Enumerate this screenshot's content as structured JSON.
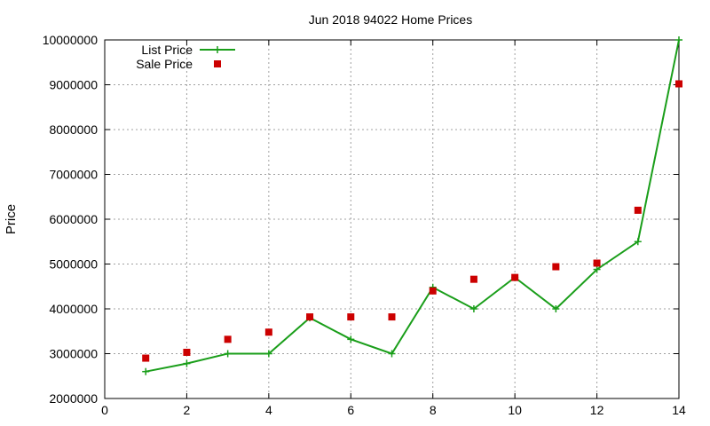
{
  "chart_data": {
    "type": "line",
    "title": "Jun 2018 94022 Home Prices",
    "xlabel": "",
    "ylabel": "Price",
    "xlim": [
      0,
      14
    ],
    "ylim": [
      2000000,
      10000000
    ],
    "x_ticks": [
      0,
      2,
      4,
      6,
      8,
      10,
      12,
      14
    ],
    "y_ticks": [
      2000000,
      3000000,
      4000000,
      5000000,
      6000000,
      7000000,
      8000000,
      9000000,
      10000000
    ],
    "grid": true,
    "legend_position": "top-left",
    "x": [
      1,
      2,
      3,
      4,
      5,
      6,
      7,
      8,
      9,
      10,
      11,
      12,
      13,
      14
    ],
    "series": [
      {
        "name": "List Price",
        "style": "line-with-plus",
        "color": "#1a9e1a",
        "values": [
          2600000,
          2780000,
          3000000,
          3000000,
          3800000,
          3320000,
          3000000,
          4480000,
          4000000,
          4700000,
          4000000,
          4880000,
          5500000,
          10000000
        ]
      },
      {
        "name": "Sale Price",
        "style": "square-points",
        "color": "#cc0000",
        "values": [
          2900000,
          3030000,
          3320000,
          3480000,
          3820000,
          3820000,
          3820000,
          4400000,
          4660000,
          4700000,
          4940000,
          5020000,
          6200000,
          9020000
        ]
      }
    ]
  }
}
